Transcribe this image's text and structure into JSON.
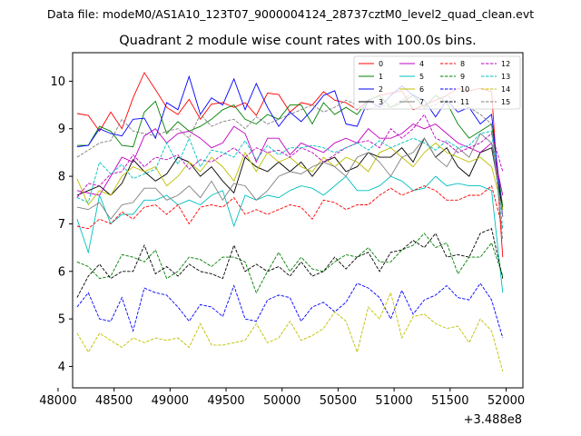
{
  "chart_data": {
    "type": "line",
    "suptitle": "Data file: modeM0/AS1A10_123T07_9000004124_28737cztM0_level2_quad_clean.evt",
    "title": "Quadrant 2 module wise count rates with 100.0s bins.",
    "xlabel": "",
    "ylabel": "",
    "x_offset_label": "+3.488e8",
    "xlim": [
      48130,
      52150
    ],
    "ylim": [
      3.55,
      10.6
    ],
    "x_ticks": [
      48000,
      48500,
      49000,
      49500,
      50000,
      50500,
      51000,
      51500,
      52000
    ],
    "y_ticks": [
      4,
      5,
      6,
      7,
      8,
      9,
      10
    ],
    "grid": false,
    "legend": {
      "position": "top-right",
      "columns": 4
    },
    "x": [
      48170,
      48270,
      48370,
      48470,
      48570,
      48670,
      48770,
      48870,
      48970,
      49070,
      49170,
      49270,
      49370,
      49470,
      49570,
      49670,
      49770,
      49870,
      49970,
      50070,
      50170,
      50270,
      50370,
      50470,
      50570,
      50670,
      50770,
      50870,
      50970,
      51070,
      51170,
      51270,
      51370,
      51470,
      51570,
      51670,
      51770,
      51870,
      51970
    ],
    "series": [
      {
        "name": "0",
        "color": "#ff0000",
        "dash": "solid",
        "values": [
          9.32,
          9.28,
          8.95,
          9.35,
          9.0,
          9.65,
          10.18,
          9.82,
          9.45,
          9.3,
          9.62,
          9.2,
          9.52,
          9.55,
          9.45,
          9.55,
          9.28,
          9.75,
          9.72,
          9.35,
          9.55,
          9.5,
          9.78,
          9.6,
          9.55,
          9.4,
          9.6,
          9.7,
          9.75,
          9.8,
          9.4,
          9.5,
          9.6,
          9.7,
          9.85,
          9.8,
          9.85,
          9.78,
          6.3
        ]
      },
      {
        "name": "1",
        "color": "#008000",
        "dash": "solid",
        "values": [
          8.65,
          8.65,
          9.05,
          8.95,
          8.65,
          8.62,
          9.35,
          9.58,
          8.9,
          9.15,
          8.95,
          9.05,
          9.2,
          9.4,
          9.5,
          9.2,
          9.1,
          9.3,
          9.2,
          9.5,
          9.5,
          9.1,
          9.55,
          9.3,
          9.45,
          9.3,
          9.6,
          9.7,
          9.45,
          9.55,
          9.7,
          9.45,
          9.7,
          9.55,
          9.1,
          8.8,
          8.95,
          9.1,
          7.35
        ]
      },
      {
        "name": "2",
        "color": "#0000ff",
        "dash": "solid",
        "values": [
          8.62,
          8.65,
          9.0,
          8.9,
          8.85,
          9.2,
          9.22,
          8.8,
          9.55,
          9.4,
          10.1,
          9.3,
          9.65,
          9.5,
          10.05,
          9.4,
          9.95,
          9.45,
          9.05,
          9.35,
          9.15,
          9.4,
          9.7,
          9.8,
          9.1,
          9.05,
          9.6,
          9.45,
          9.7,
          9.9,
          9.7,
          9.6,
          9.25,
          9.6,
          9.35,
          9.45,
          9.1,
          9.3,
          7.15
        ]
      },
      {
        "name": "3",
        "color": "#000000",
        "dash": "solid",
        "values": [
          7.6,
          7.7,
          7.8,
          7.6,
          7.85,
          8.35,
          8.1,
          7.9,
          8.05,
          8.4,
          8.3,
          8.0,
          8.2,
          7.9,
          7.65,
          8.4,
          8.2,
          8.1,
          8.3,
          8.1,
          8.3,
          8.0,
          8.3,
          8.4,
          8.1,
          8.2,
          8.5,
          8.4,
          8.4,
          8.6,
          8.3,
          8.8,
          8.4,
          8.6,
          8.2,
          8.0,
          8.5,
          8.6,
          7.3
        ]
      },
      {
        "name": "4",
        "color": "#bf00bf",
        "dash": "solid",
        "values": [
          7.7,
          7.65,
          7.6,
          8.0,
          8.4,
          8.3,
          8.85,
          9.0,
          8.7,
          8.9,
          8.95,
          8.8,
          8.6,
          8.7,
          9.05,
          8.9,
          8.3,
          8.8,
          8.8,
          8.45,
          8.7,
          8.6,
          8.5,
          8.7,
          8.8,
          8.7,
          9.0,
          8.8,
          8.8,
          8.9,
          9.1,
          9.0,
          9.1,
          8.9,
          8.7,
          8.6,
          8.5,
          8.7,
          7.6
        ]
      },
      {
        "name": "5",
        "color": "#00bfbf",
        "dash": "solid",
        "values": [
          7.1,
          6.4,
          7.6,
          7.0,
          7.2,
          7.2,
          7.5,
          7.5,
          7.6,
          7.4,
          7.5,
          7.4,
          7.6,
          7.7,
          6.95,
          7.6,
          7.5,
          7.6,
          7.55,
          7.7,
          7.8,
          7.75,
          7.6,
          7.8,
          8.0,
          7.7,
          7.7,
          7.8,
          8.0,
          7.9,
          7.7,
          7.75,
          8.0,
          7.8,
          7.85,
          7.8,
          7.8,
          7.7,
          5.55
        ]
      },
      {
        "name": "6",
        "color": "#bfbf00",
        "dash": "solid",
        "values": [
          7.95,
          7.4,
          7.7,
          7.6,
          8.0,
          8.2,
          8.1,
          8.2,
          7.8,
          8.0,
          8.3,
          8.1,
          8.4,
          8.2,
          7.9,
          8.5,
          8.1,
          8.5,
          8.3,
          8.4,
          8.2,
          8.1,
          8.4,
          8.2,
          8.4,
          8.3,
          8.1,
          8.5,
          8.6,
          8.4,
          8.2,
          8.5,
          8.7,
          8.5,
          8.4,
          8.3,
          8.4,
          8.2,
          7.3
        ]
      },
      {
        "name": "7",
        "color": "#808080",
        "dash": "solid",
        "values": [
          7.35,
          7.3,
          7.45,
          7.1,
          7.4,
          7.45,
          7.75,
          7.75,
          7.5,
          7.6,
          7.8,
          7.55,
          7.9,
          7.5,
          7.85,
          7.8,
          7.5,
          7.7,
          8.0,
          8.1,
          8.05,
          8.2,
          8.3,
          8.2,
          8.0,
          8.4,
          8.5,
          8.3,
          8.0,
          8.4,
          8.5,
          8.8,
          8.4,
          8.2,
          8.6,
          8.4,
          8.9,
          8.7,
          7.15
        ]
      },
      {
        "name": "8",
        "color": "#ff0000",
        "dash": "dashed",
        "values": [
          6.95,
          6.9,
          7.1,
          7.0,
          7.25,
          7.1,
          7.35,
          7.4,
          7.2,
          7.4,
          7.0,
          7.35,
          7.4,
          7.35,
          7.55,
          7.2,
          7.3,
          7.2,
          7.3,
          7.4,
          7.35,
          7.1,
          7.5,
          7.45,
          7.3,
          7.4,
          7.4,
          7.6,
          7.75,
          7.6,
          7.7,
          7.8,
          7.7,
          7.5,
          7.5,
          7.6,
          7.6,
          7.8,
          6.9
        ]
      },
      {
        "name": "9",
        "color": "#008000",
        "dash": "dashed",
        "values": [
          6.2,
          6.1,
          5.85,
          5.9,
          6.35,
          6.3,
          6.2,
          6.45,
          5.85,
          6.0,
          6.3,
          6.25,
          6.1,
          6.3,
          6.3,
          6.2,
          5.55,
          6.0,
          6.4,
          6.0,
          6.3,
          6.05,
          6.0,
          6.2,
          6.35,
          6.3,
          6.5,
          6.2,
          6.2,
          6.45,
          6.55,
          6.8,
          6.5,
          6.6,
          5.95,
          6.3,
          6.3,
          6.6,
          5.9
        ]
      },
      {
        "name": "10",
        "color": "#0000ff",
        "dash": "dashed",
        "values": [
          5.25,
          5.55,
          5.0,
          4.95,
          5.45,
          4.75,
          5.65,
          5.55,
          5.5,
          5.25,
          4.95,
          5.3,
          5.25,
          5.05,
          5.7,
          5.0,
          4.95,
          5.4,
          5.5,
          5.45,
          4.95,
          5.25,
          5.35,
          5.15,
          5.35,
          5.75,
          5.65,
          5.45,
          5.0,
          5.6,
          5.1,
          5.4,
          5.5,
          5.7,
          5.45,
          5.4,
          5.75,
          5.4,
          4.6
        ]
      },
      {
        "name": "11",
        "color": "#000000",
        "dash": "dashed",
        "values": [
          5.45,
          5.9,
          6.15,
          5.85,
          6.0,
          6.0,
          6.55,
          5.95,
          6.1,
          5.9,
          6.15,
          6.0,
          5.95,
          5.85,
          6.55,
          6.0,
          6.15,
          6.0,
          6.1,
          5.9,
          6.2,
          5.9,
          6.0,
          6.3,
          6.05,
          6.3,
          6.4,
          6.0,
          6.4,
          6.45,
          6.65,
          6.5,
          6.8,
          6.3,
          6.35,
          6.3,
          6.8,
          6.9,
          5.85
        ]
      },
      {
        "name": "12",
        "color": "#bf00bf",
        "dash": "dashed",
        "values": [
          7.55,
          7.85,
          7.8,
          8.05,
          8.1,
          8.45,
          8.2,
          8.4,
          8.35,
          8.45,
          8.15,
          8.35,
          8.3,
          8.45,
          8.6,
          8.4,
          8.6,
          8.5,
          8.55,
          8.4,
          8.6,
          8.5,
          8.3,
          8.45,
          8.6,
          8.7,
          8.75,
          8.6,
          9.0,
          8.8,
          9.0,
          9.3,
          8.8,
          8.7,
          8.5,
          8.6,
          8.7,
          8.9,
          8.1
        ]
      },
      {
        "name": "13",
        "color": "#00bfbf",
        "dash": "dashed",
        "values": [
          7.55,
          7.45,
          8.3,
          8.05,
          8.25,
          7.95,
          8.05,
          8.15,
          8.7,
          8.25,
          8.8,
          8.2,
          8.55,
          8.5,
          8.4,
          8.75,
          8.35,
          8.65,
          8.45,
          8.6,
          8.6,
          8.65,
          8.6,
          8.5,
          8.6,
          8.7,
          8.55,
          8.75,
          8.6,
          8.7,
          8.8,
          8.7,
          8.55,
          8.75,
          8.6,
          8.65,
          8.9,
          8.95,
          6.9
        ]
      },
      {
        "name": "14",
        "color": "#bfbf00",
        "dash": "dashed",
        "values": [
          4.7,
          4.3,
          4.7,
          4.55,
          4.4,
          4.6,
          4.5,
          4.6,
          4.55,
          4.6,
          4.4,
          4.9,
          4.45,
          4.45,
          4.5,
          4.55,
          4.9,
          4.5,
          4.6,
          4.95,
          4.55,
          4.65,
          4.8,
          5.15,
          4.95,
          4.3,
          5.25,
          5.0,
          5.55,
          4.6,
          5.05,
          5.1,
          4.9,
          4.8,
          4.85,
          4.5,
          5.0,
          4.75,
          3.9
        ]
      },
      {
        "name": "15",
        "color": "#808080",
        "dash": "dashed",
        "values": [
          8.4,
          8.55,
          8.7,
          8.75,
          9.2,
          8.95,
          8.9,
          8.85,
          8.95,
          9.0,
          8.8,
          9.3,
          9.05,
          9.15,
          9.2,
          9.0,
          9.25,
          9.1,
          9.2,
          9.3,
          9.4,
          9.5,
          9.35,
          9.45,
          9.6,
          9.5,
          9.4,
          9.5,
          9.45,
          9.6,
          9.75,
          9.45,
          9.5,
          9.7,
          9.55,
          9.45,
          9.3,
          9.1,
          6.65
        ]
      }
    ]
  }
}
